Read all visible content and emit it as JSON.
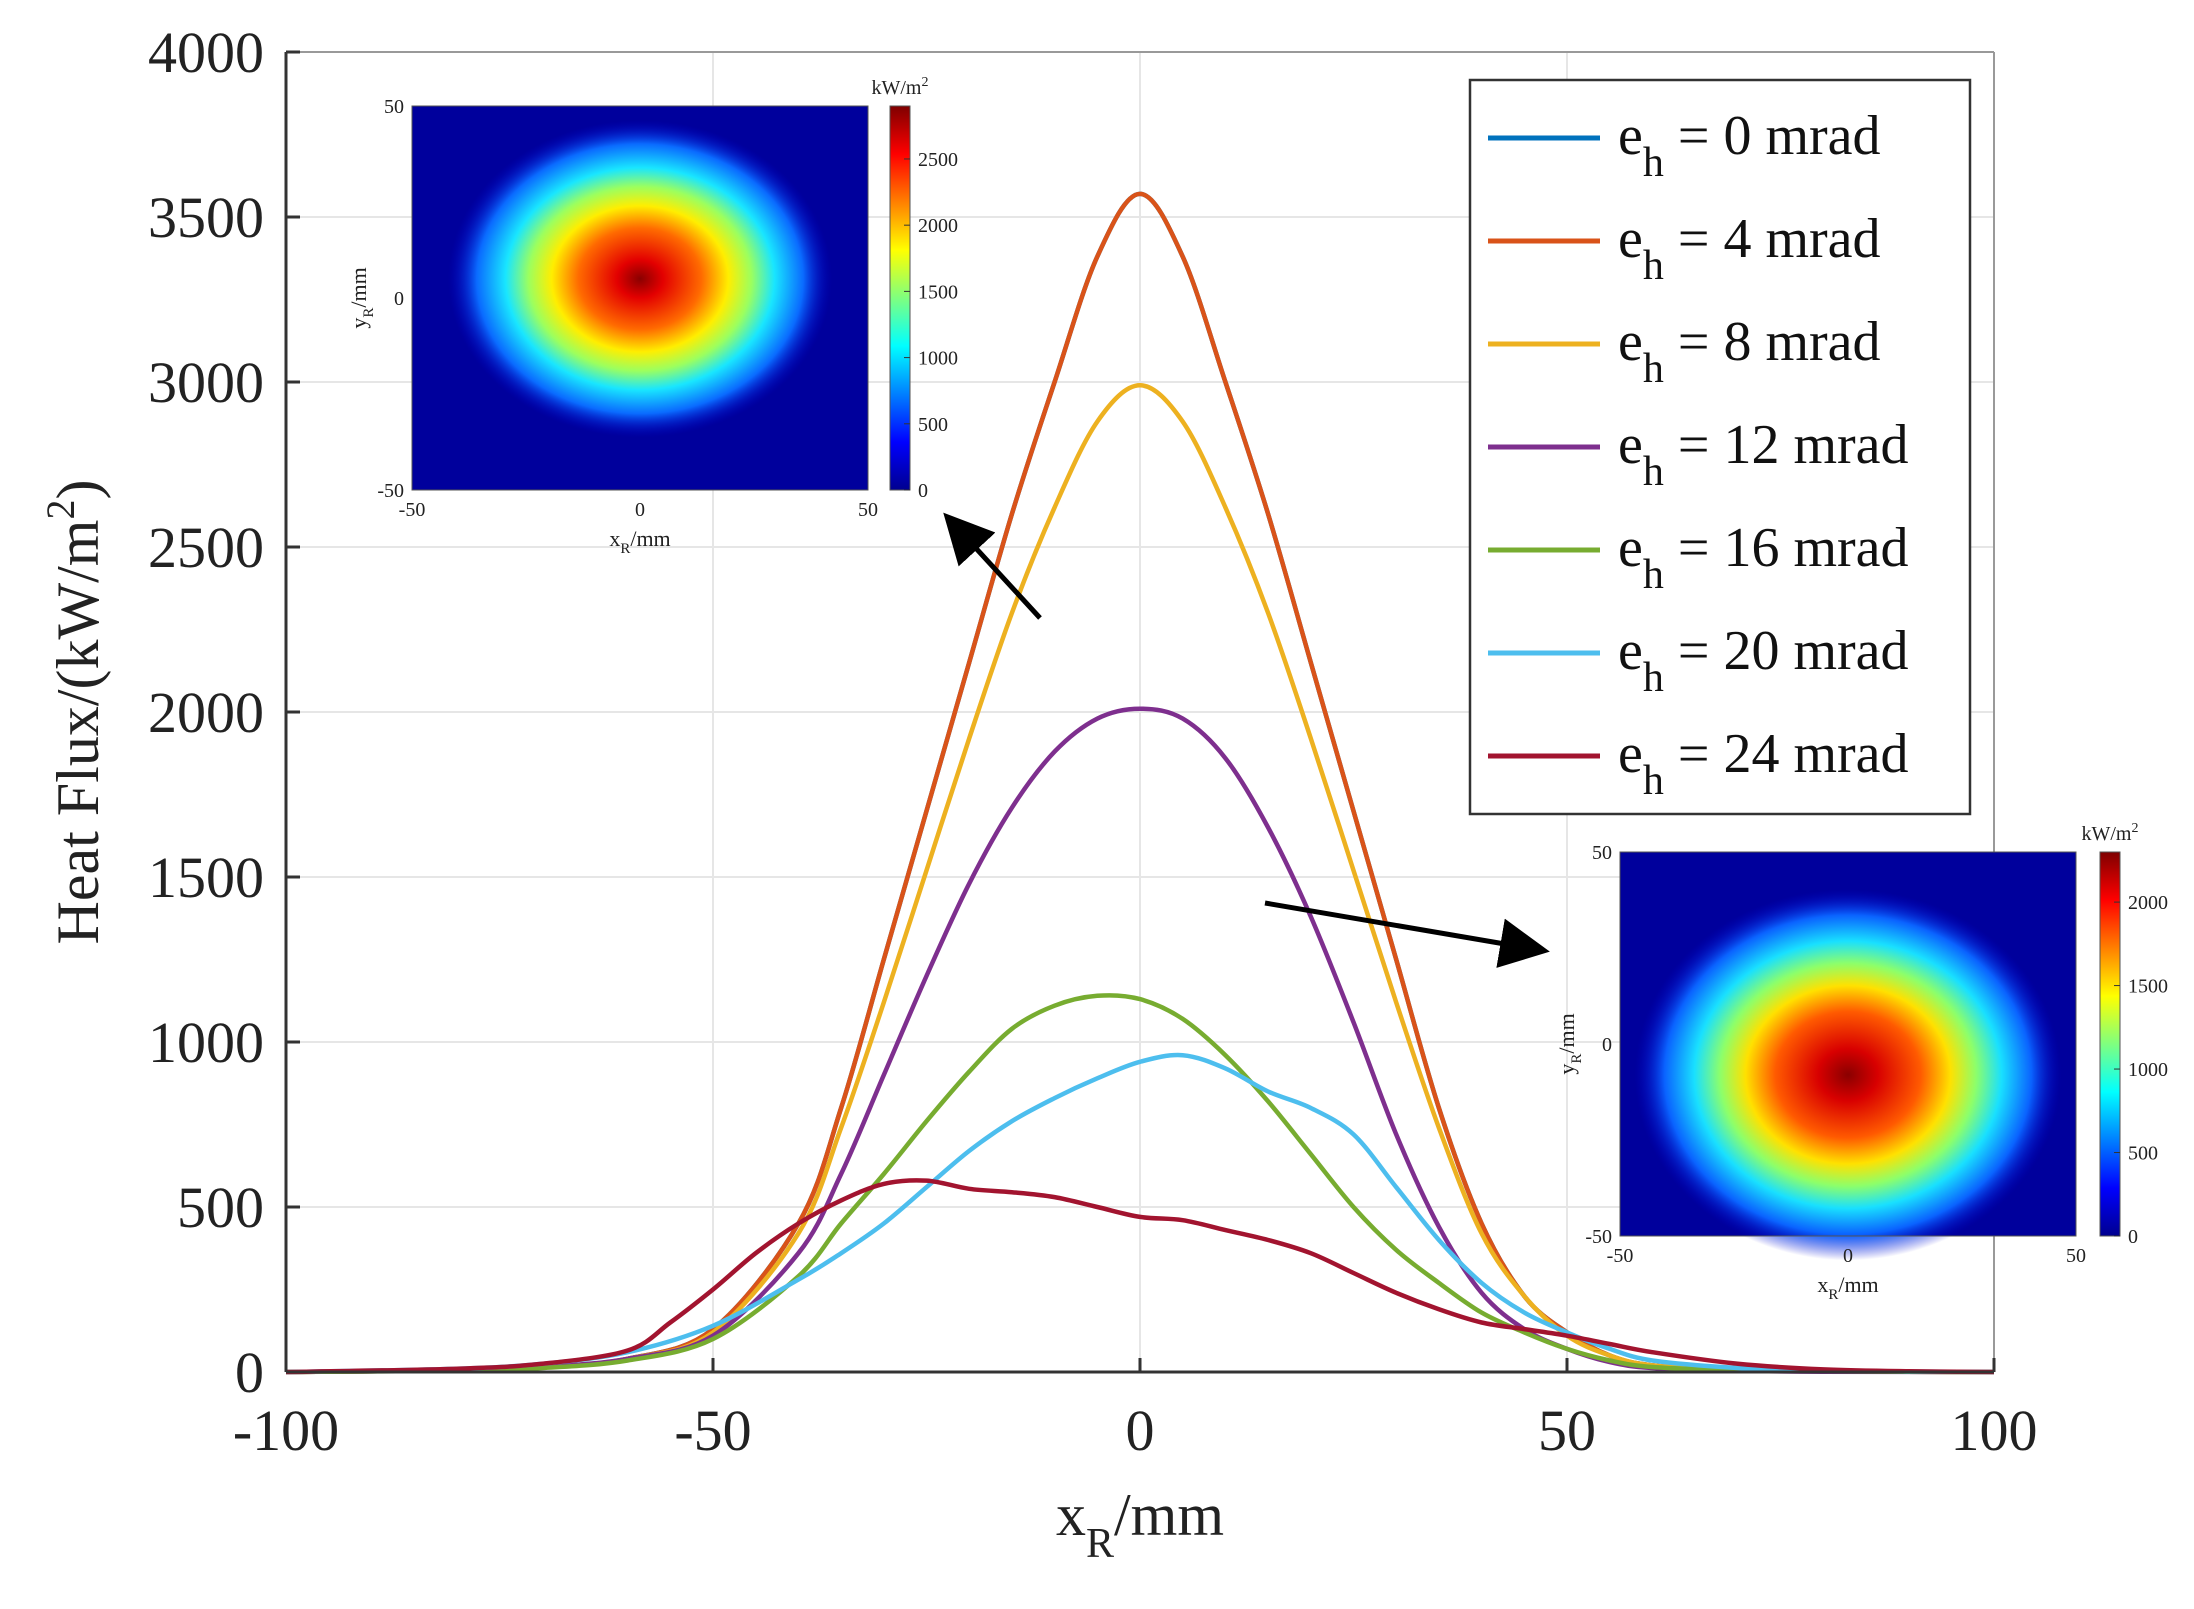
{
  "chart_data": {
    "type": "line",
    "title": "",
    "xlabel": "x_R/mm",
    "xlabel_parts": {
      "base": "x",
      "sub": "R",
      "rest": "/mm"
    },
    "ylabel": "Heat Flux/(kW/m^2)",
    "ylabel_parts": {
      "base": "Heat Flux/(kW/m",
      "sup": "2",
      "rest": ")"
    },
    "xlim": [
      -100,
      100
    ],
    "ylim": [
      0,
      4000
    ],
    "xticks": [
      -100,
      -50,
      0,
      50,
      100
    ],
    "yticks": [
      0,
      500,
      1000,
      1500,
      2000,
      2500,
      3000,
      3500,
      4000
    ],
    "grid": true,
    "legend_position": "top-right",
    "series": [
      {
        "name": "e_h = 0 mrad",
        "label_base": "e",
        "label_sub": "h",
        "label_rest": " = 0 mrad",
        "color": "#0072BD",
        "points": [
          [
            -100,
            0
          ],
          [
            -80,
            5
          ],
          [
            -70,
            15
          ],
          [
            -60,
            40
          ],
          [
            -50,
            130
          ],
          [
            -40,
            450
          ],
          [
            -35,
            800
          ],
          [
            -30,
            1250
          ],
          [
            -25,
            1700
          ],
          [
            -20,
            2150
          ],
          [
            -15,
            2600
          ],
          [
            -10,
            3000
          ],
          [
            -5,
            3380
          ],
          [
            0,
            3570
          ],
          [
            5,
            3380
          ],
          [
            10,
            3000
          ],
          [
            15,
            2600
          ],
          [
            20,
            2150
          ],
          [
            25,
            1700
          ],
          [
            30,
            1250
          ],
          [
            35,
            800
          ],
          [
            40,
            450
          ],
          [
            45,
            230
          ],
          [
            50,
            120
          ],
          [
            55,
            50
          ],
          [
            60,
            20
          ],
          [
            70,
            5
          ],
          [
            80,
            2
          ],
          [
            100,
            0
          ]
        ]
      },
      {
        "name": "e_h = 4 mrad",
        "label_base": "e",
        "label_sub": "h",
        "label_rest": " = 4 mrad",
        "color": "#D95319",
        "points": [
          [
            -100,
            0
          ],
          [
            -80,
            5
          ],
          [
            -70,
            15
          ],
          [
            -60,
            40
          ],
          [
            -50,
            130
          ],
          [
            -40,
            450
          ],
          [
            -35,
            800
          ],
          [
            -30,
            1250
          ],
          [
            -25,
            1700
          ],
          [
            -20,
            2150
          ],
          [
            -15,
            2600
          ],
          [
            -10,
            3000
          ],
          [
            -5,
            3380
          ],
          [
            0,
            3570
          ],
          [
            5,
            3380
          ],
          [
            10,
            3000
          ],
          [
            15,
            2600
          ],
          [
            20,
            2150
          ],
          [
            25,
            1700
          ],
          [
            30,
            1250
          ],
          [
            35,
            800
          ],
          [
            40,
            450
          ],
          [
            45,
            230
          ],
          [
            50,
            120
          ],
          [
            55,
            50
          ],
          [
            60,
            20
          ],
          [
            70,
            5
          ],
          [
            80,
            2
          ],
          [
            100,
            0
          ]
        ]
      },
      {
        "name": "e_h = 8 mrad",
        "label_base": "e",
        "label_sub": "h",
        "label_rest": " = 8 mrad",
        "color": "#EDB120",
        "points": [
          [
            -100,
            0
          ],
          [
            -80,
            5
          ],
          [
            -70,
            15
          ],
          [
            -60,
            40
          ],
          [
            -50,
            120
          ],
          [
            -40,
            420
          ],
          [
            -35,
            740
          ],
          [
            -30,
            1120
          ],
          [
            -25,
            1520
          ],
          [
            -20,
            1920
          ],
          [
            -15,
            2300
          ],
          [
            -10,
            2620
          ],
          [
            -5,
            2880
          ],
          [
            0,
            2990
          ],
          [
            5,
            2880
          ],
          [
            10,
            2620
          ],
          [
            15,
            2300
          ],
          [
            20,
            1920
          ],
          [
            25,
            1520
          ],
          [
            30,
            1120
          ],
          [
            35,
            740
          ],
          [
            40,
            420
          ],
          [
            45,
            230
          ],
          [
            50,
            110
          ],
          [
            55,
            50
          ],
          [
            60,
            20
          ],
          [
            70,
            5
          ],
          [
            80,
            2
          ],
          [
            100,
            0
          ]
        ]
      },
      {
        "name": "e_h = 12 mrad",
        "label_base": "e",
        "label_sub": "h",
        "label_rest": " = 12 mrad",
        "color": "#7E2F8E",
        "points": [
          [
            -100,
            0
          ],
          [
            -80,
            5
          ],
          [
            -70,
            15
          ],
          [
            -60,
            40
          ],
          [
            -50,
            110
          ],
          [
            -40,
            360
          ],
          [
            -35,
            600
          ],
          [
            -30,
            900
          ],
          [
            -25,
            1200
          ],
          [
            -20,
            1480
          ],
          [
            -15,
            1710
          ],
          [
            -10,
            1880
          ],
          [
            -5,
            1980
          ],
          [
            0,
            2010
          ],
          [
            5,
            1980
          ],
          [
            10,
            1860
          ],
          [
            15,
            1650
          ],
          [
            20,
            1380
          ],
          [
            25,
            1060
          ],
          [
            30,
            720
          ],
          [
            35,
            440
          ],
          [
            40,
            240
          ],
          [
            45,
            130
          ],
          [
            50,
            70
          ],
          [
            55,
            30
          ],
          [
            60,
            12
          ],
          [
            70,
            4
          ],
          [
            80,
            1
          ],
          [
            100,
            0
          ]
        ]
      },
      {
        "name": "e_h = 16 mrad",
        "label_base": "e",
        "label_sub": "h",
        "label_rest": " = 16 mrad",
        "color": "#77AC30",
        "points": [
          [
            -100,
            0
          ],
          [
            -80,
            4
          ],
          [
            -70,
            12
          ],
          [
            -60,
            35
          ],
          [
            -50,
            100
          ],
          [
            -40,
            290
          ],
          [
            -35,
            450
          ],
          [
            -30,
            600
          ],
          [
            -25,
            760
          ],
          [
            -20,
            910
          ],
          [
            -15,
            1040
          ],
          [
            -10,
            1110
          ],
          [
            -5,
            1140
          ],
          [
            0,
            1130
          ],
          [
            5,
            1070
          ],
          [
            10,
            960
          ],
          [
            15,
            820
          ],
          [
            20,
            660
          ],
          [
            25,
            500
          ],
          [
            30,
            370
          ],
          [
            35,
            270
          ],
          [
            40,
            180
          ],
          [
            45,
            120
          ],
          [
            50,
            70
          ],
          [
            55,
            35
          ],
          [
            60,
            15
          ],
          [
            70,
            5
          ],
          [
            80,
            2
          ],
          [
            100,
            0
          ]
        ]
      },
      {
        "name": "e_h = 20 mrad",
        "label_base": "e",
        "label_sub": "h",
        "label_rest": " = 20 mrad",
        "color": "#4DBEEE",
        "points": [
          [
            -100,
            0
          ],
          [
            -80,
            10
          ],
          [
            -70,
            25
          ],
          [
            -60,
            60
          ],
          [
            -50,
            140
          ],
          [
            -40,
            280
          ],
          [
            -35,
            360
          ],
          [
            -30,
            450
          ],
          [
            -25,
            560
          ],
          [
            -20,
            670
          ],
          [
            -15,
            760
          ],
          [
            -10,
            830
          ],
          [
            -5,
            890
          ],
          [
            0,
            940
          ],
          [
            5,
            960
          ],
          [
            10,
            920
          ],
          [
            15,
            850
          ],
          [
            20,
            800
          ],
          [
            25,
            720
          ],
          [
            30,
            560
          ],
          [
            35,
            400
          ],
          [
            40,
            270
          ],
          [
            45,
            180
          ],
          [
            50,
            120
          ],
          [
            55,
            70
          ],
          [
            60,
            35
          ],
          [
            70,
            12
          ],
          [
            80,
            4
          ],
          [
            100,
            0
          ]
        ]
      },
      {
        "name": "e_h = 24 mrad",
        "label_base": "e",
        "label_sub": "h",
        "label_rest": " = 24 mrad",
        "color": "#A2142F",
        "points": [
          [
            -100,
            0
          ],
          [
            -80,
            10
          ],
          [
            -70,
            25
          ],
          [
            -60,
            65
          ],
          [
            -55,
            150
          ],
          [
            -50,
            250
          ],
          [
            -45,
            360
          ],
          [
            -40,
            450
          ],
          [
            -35,
            520
          ],
          [
            -30,
            570
          ],
          [
            -25,
            580
          ],
          [
            -20,
            555
          ],
          [
            -15,
            545
          ],
          [
            -10,
            530
          ],
          [
            -5,
            500
          ],
          [
            0,
            470
          ],
          [
            5,
            460
          ],
          [
            10,
            430
          ],
          [
            15,
            400
          ],
          [
            20,
            360
          ],
          [
            25,
            300
          ],
          [
            30,
            240
          ],
          [
            35,
            190
          ],
          [
            40,
            150
          ],
          [
            45,
            130
          ],
          [
            50,
            110
          ],
          [
            55,
            85
          ],
          [
            60,
            60
          ],
          [
            70,
            25
          ],
          [
            80,
            8
          ],
          [
            90,
            2
          ],
          [
            100,
            0
          ]
        ]
      }
    ],
    "insets": [
      {
        "name": "inset-heatmap-top-left",
        "xlabel_parts": {
          "base": "x",
          "sub": "R",
          "rest": "/mm"
        },
        "ylabel_parts": {
          "base": "y",
          "sub": "R",
          "rest": "/mm"
        },
        "xticks": [
          "-50",
          "0",
          "50"
        ],
        "yticks": [
          "50",
          "0",
          "-50"
        ],
        "colorbar_title": "kW/m",
        "colorbar_title_sup": "2",
        "colorbar_ticks": [
          "2500",
          "2000",
          "1500",
          "1000",
          "500",
          "0"
        ],
        "colorbar_max": 2900,
        "colorbar_tick_values": [
          2500,
          2000,
          1500,
          1000,
          500,
          0
        ],
        "hotspot_x": 0,
        "hotspot_y": 5,
        "peak": 2900
      },
      {
        "name": "inset-heatmap-bottom-right",
        "xlabel_parts": {
          "base": "x",
          "sub": "R",
          "rest": "/mm"
        },
        "ylabel_parts": {
          "base": "y",
          "sub": "R",
          "rest": "/mm"
        },
        "xticks": [
          "-50",
          "0",
          "50"
        ],
        "yticks": [
          "50",
          "0",
          "-50"
        ],
        "colorbar_title": "kW/m",
        "colorbar_title_sup": "2",
        "colorbar_ticks": [
          "2000",
          "1500",
          "1000",
          "500",
          "0"
        ],
        "colorbar_max": 2300,
        "colorbar_tick_values": [
          2000,
          1500,
          1000,
          500,
          0
        ],
        "hotspot_x": 0,
        "hotspot_y": -8,
        "peak": 2300
      }
    ],
    "arrows": [
      {
        "name": "arrow-to-top-left-inset",
        "from_series": "e_h = 4 mrad",
        "target": "inset-heatmap-top-left"
      },
      {
        "name": "arrow-to-bottom-right-inset",
        "from_series": "e_h = 12 mrad",
        "target": "inset-heatmap-bottom-right"
      }
    ]
  },
  "colors": {
    "grid": "#e6e6e6",
    "axis": "#333333",
    "legend_border": "#333333"
  }
}
